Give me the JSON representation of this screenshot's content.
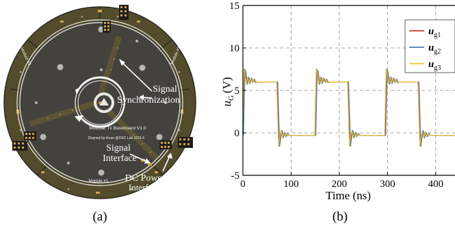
{
  "panel_a": {
    "caption": "(a)",
    "board": {
      "title": "Modular Tx Baseboard V1.0",
      "credit": "Degned by Huan @DSC Lab 2021.6",
      "module_1": "Module #1",
      "module_2": "Module #2",
      "module_3": "Module #3"
    },
    "annotations": {
      "sync_line1": "Signal",
      "sync_line2": "Synchronization",
      "iface_line1": "Signal",
      "iface_line2": "Interface",
      "power_line1": "DC Power",
      "power_line2": "Interface"
    },
    "colors": {
      "pcb": "#44423d",
      "ring": "#524c2c",
      "silk": "#f2f2f2",
      "trace": "#5c5434",
      "pad": "#c9a24a"
    }
  },
  "panel_b": {
    "caption": "(b)",
    "colors": {
      "ug1": "#d9342b",
      "ug2": "#3f7fbf",
      "ug3": "#f2c22e"
    }
  },
  "chart_data": {
    "type": "line",
    "ylabel_base": "u",
    "ylabel_sub": "G",
    "ylabel_unit": "(V)",
    "xlabel": "Time (ns)",
    "xlim": [
      0,
      440
    ],
    "ylim": [
      -5,
      15
    ],
    "xticks": [
      "0",
      "100",
      "200",
      "300",
      "400"
    ],
    "yticks": [
      "-5",
      "0",
      "5",
      "10",
      "15"
    ],
    "grid": true,
    "legend_placement": "top-right",
    "series": [
      {
        "name": "u_g1",
        "label_base": "u",
        "label_sub": "g1",
        "high_level": 6.0,
        "low_level": -0.3,
        "rise_times": [
          0,
          150,
          295
        ],
        "fall_times": [
          73,
          220,
          366
        ],
        "period": 147,
        "high_duration": 73
      },
      {
        "name": "u_g2",
        "label_base": "u",
        "label_sub": "g2",
        "high_level": 6.0,
        "low_level": -0.3,
        "rise_times": [
          0,
          150,
          295
        ],
        "fall_times": [
          73,
          220,
          366
        ],
        "period": 147,
        "high_duration": 73
      },
      {
        "name": "u_g3",
        "label_base": "u",
        "label_sub": "g3",
        "high_level": 6.0,
        "low_level": -0.3,
        "rise_times": [
          0,
          150,
          295
        ],
        "fall_times": [
          73,
          220,
          366
        ],
        "period": 147,
        "high_duration": 73
      }
    ]
  }
}
